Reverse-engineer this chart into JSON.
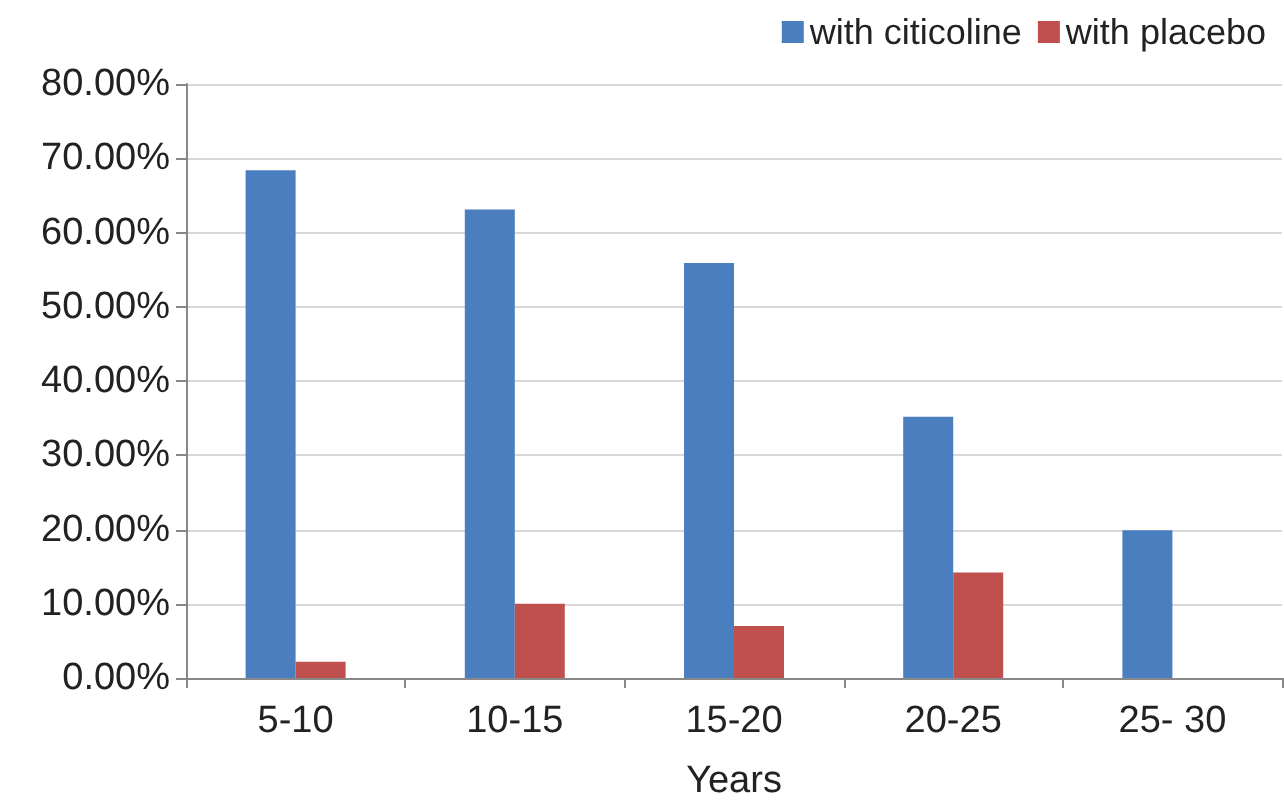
{
  "chart_data": {
    "type": "bar",
    "xlabel": "Years",
    "categories": [
      "5-10",
      "10-15",
      "15-20",
      "20-25",
      "25- 30"
    ],
    "series": [
      {
        "name": "with citicoline",
        "color": "#4a7ebf",
        "values": [
          68.4,
          63.1,
          55.9,
          35.2,
          19.9
        ]
      },
      {
        "name": "with placebo",
        "color": "#c0504d",
        "values": [
          2.2,
          10.0,
          7.0,
          14.2,
          0
        ]
      }
    ],
    "ylim": [
      0,
      80
    ],
    "yticks": [
      {
        "value": 0,
        "label": "0.00%"
      },
      {
        "value": 10,
        "label": "10.00%"
      },
      {
        "value": 20,
        "label": "20.00%"
      },
      {
        "value": 30,
        "label": "30.00%"
      },
      {
        "value": 40,
        "label": "40.00%"
      },
      {
        "value": 50,
        "label": "50.00%"
      },
      {
        "value": 60,
        "label": "60.00%"
      },
      {
        "value": 70,
        "label": "70.00%"
      },
      {
        "value": 80,
        "label": "80.00%"
      }
    ],
    "grid": "y",
    "legend": "top right"
  }
}
